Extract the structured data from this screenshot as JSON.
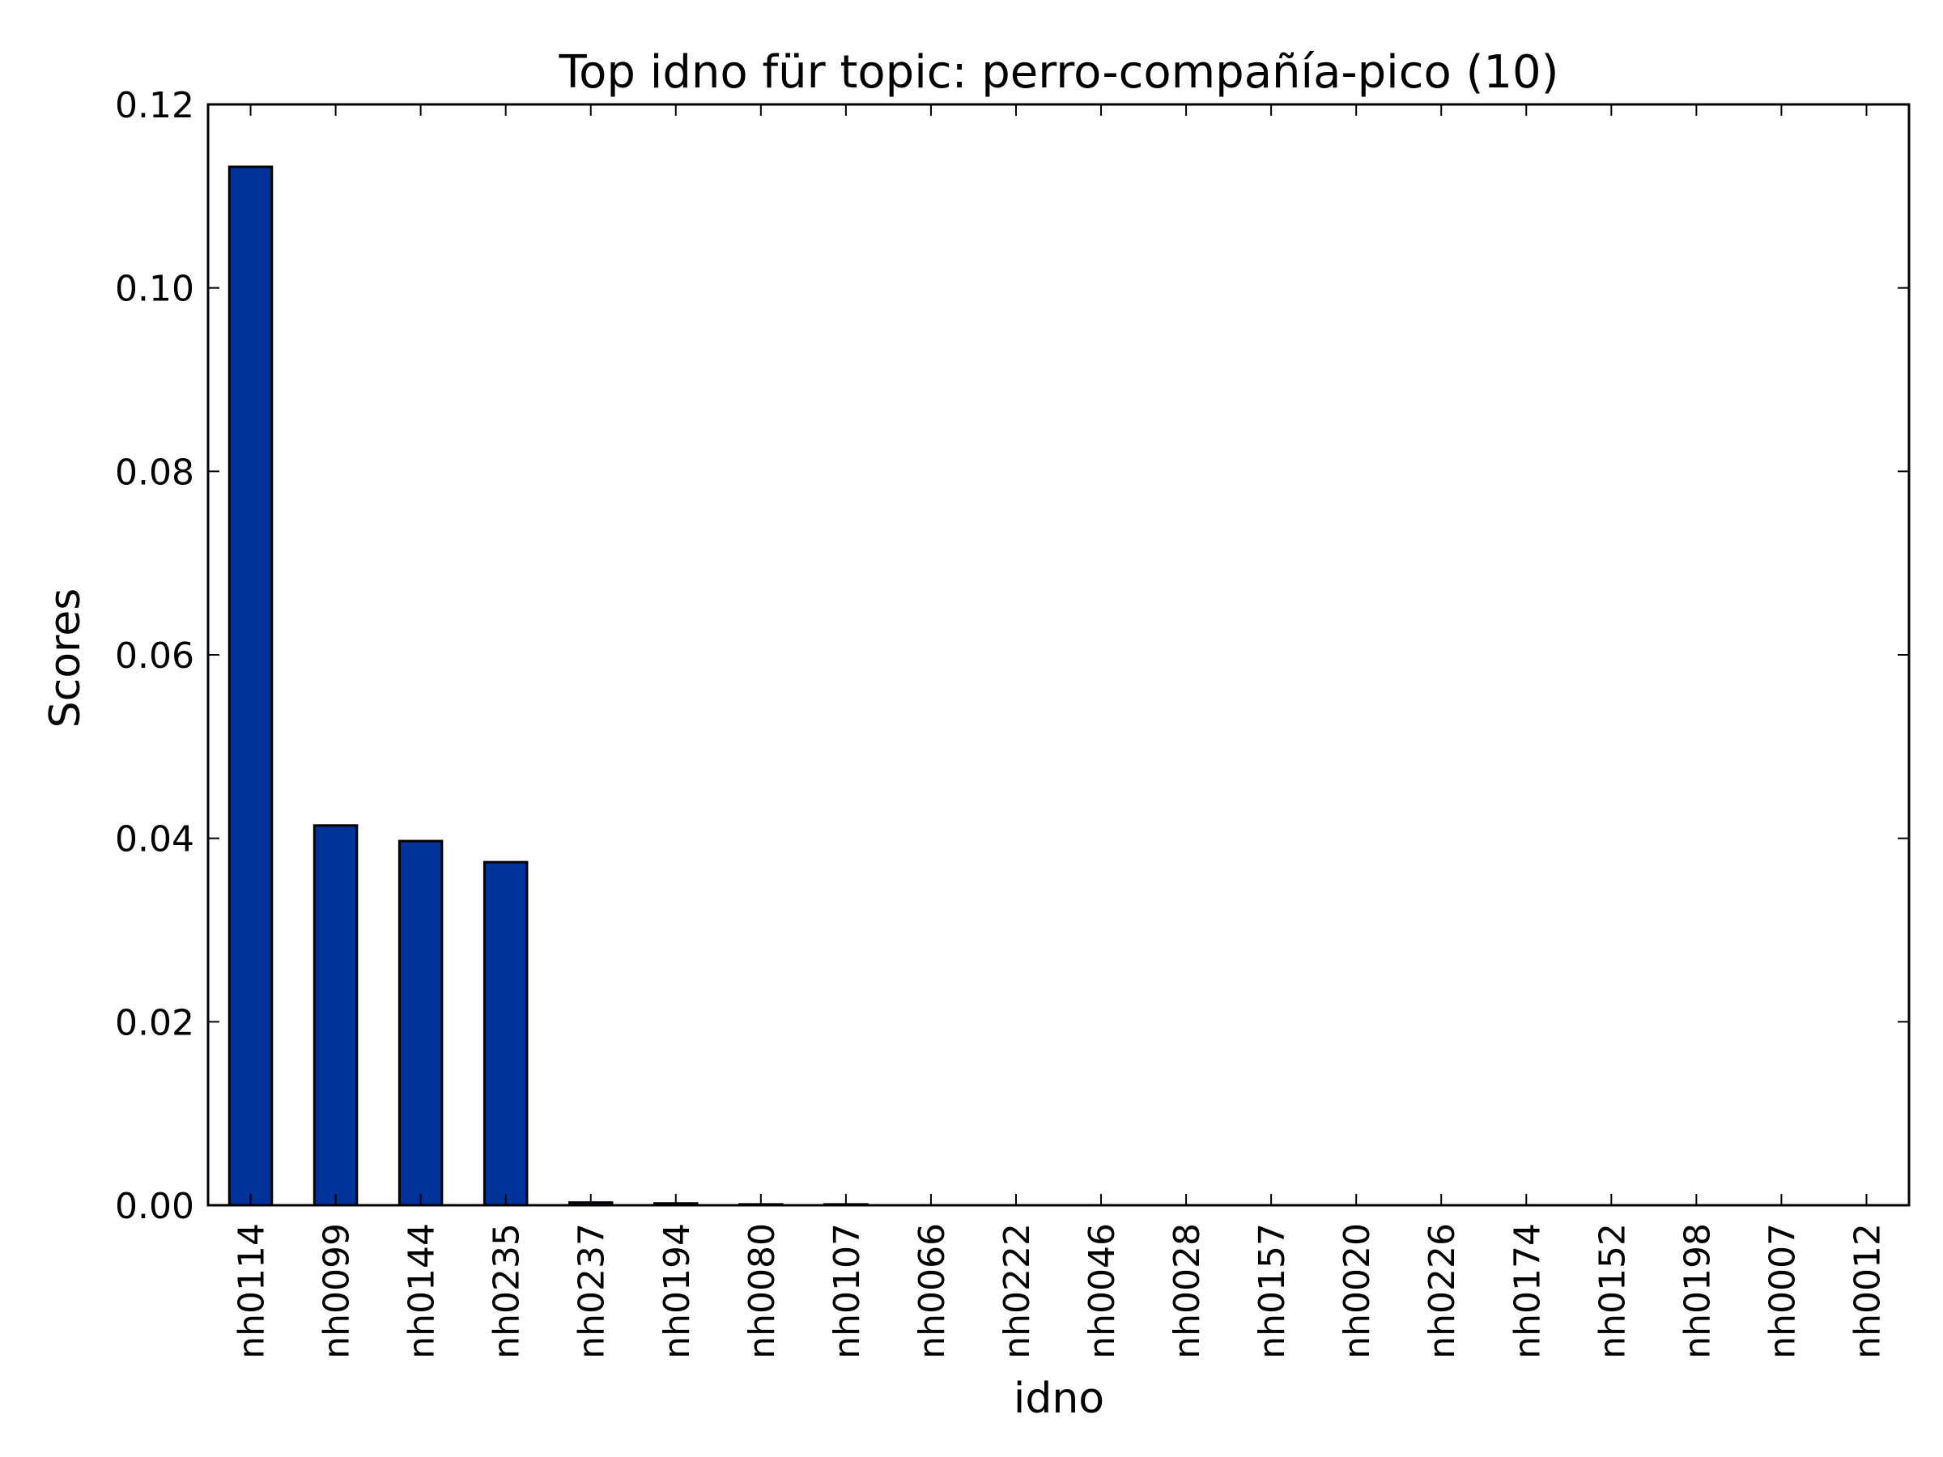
{
  "chart_data": {
    "type": "bar",
    "title": "Top idno für topic: perro-compañía-pico (10)",
    "xlabel": "idno",
    "ylabel": "Scores",
    "ylim": [
      0,
      0.12
    ],
    "yticks": [
      "0.00",
      "0.02",
      "0.04",
      "0.06",
      "0.08",
      "0.10",
      "0.12"
    ],
    "categories": [
      "nh0114",
      "nh0099",
      "nh0144",
      "nh0235",
      "nh0237",
      "nh0194",
      "nh0080",
      "nh0107",
      "nh0066",
      "nh0222",
      "nh0046",
      "nh0028",
      "nh0157",
      "nh0020",
      "nh0226",
      "nh0174",
      "nh0152",
      "nh0198",
      "nh0007",
      "nh0012"
    ],
    "values": [
      0.1132,
      0.0414,
      0.0397,
      0.0374,
      0.0003,
      0.0002,
      0.0001,
      0.0001,
      0,
      0,
      0,
      0,
      0,
      0,
      0,
      0,
      0,
      0,
      0,
      0
    ],
    "grid": false,
    "colors": {
      "bar": "#003399",
      "edge": "#000000"
    }
  }
}
